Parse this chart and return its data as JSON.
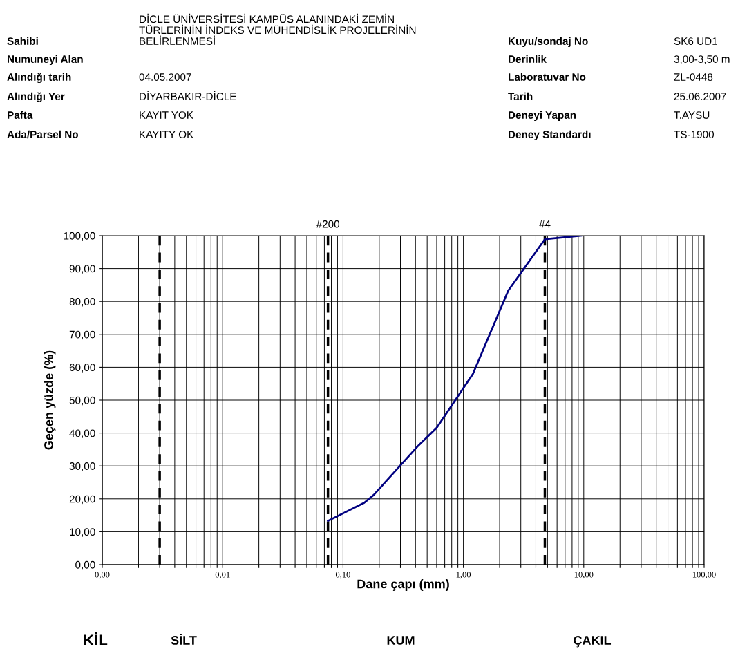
{
  "chart_data": {
    "type": "line",
    "xlabel": "Dane çapı (mm)",
    "ylabel": "Geçen yüzde (%)",
    "x": [
      0.075,
      0.15,
      0.18,
      0.42,
      0.6,
      1.2,
      2.36,
      4.75,
      9.5
    ],
    "series": [
      {
        "color": "#000080",
        "values": [
          13.3,
          18.8,
          21.2,
          36.1,
          41.6,
          58.0,
          83.3,
          98.9,
          100
        ]
      }
    ],
    "log": "x",
    "xlim": [
      0.001,
      100
    ],
    "ylim": [
      0,
      100
    ],
    "xticks": [
      {
        "value": 0.001,
        "label": "0,00"
      },
      {
        "value": 0.002,
        "label": null
      },
      {
        "value": 0.003,
        "label": null
      },
      {
        "value": 0.004,
        "label": null
      },
      {
        "value": 0.005,
        "label": null
      },
      {
        "value": 0.006,
        "label": null
      },
      {
        "value": 0.007,
        "label": null
      },
      {
        "value": 0.008,
        "label": null
      },
      {
        "value": 0.009,
        "label": null
      },
      {
        "value": 0.01,
        "label": "0,01"
      },
      {
        "value": 0.02,
        "label": null
      },
      {
        "value": 0.03,
        "label": null
      },
      {
        "value": 0.04,
        "label": null
      },
      {
        "value": 0.05,
        "label": null
      },
      {
        "value": 0.06,
        "label": null
      },
      {
        "value": 0.07,
        "label": null
      },
      {
        "value": 0.08,
        "label": null
      },
      {
        "value": 0.09,
        "label": null
      },
      {
        "value": 0.1,
        "label": "0,10"
      },
      {
        "value": 0.2,
        "label": null
      },
      {
        "value": 0.3,
        "label": null
      },
      {
        "value": 0.4,
        "label": null
      },
      {
        "value": 0.5,
        "label": null
      },
      {
        "value": 0.6,
        "label": null
      },
      {
        "value": 0.7,
        "label": null
      },
      {
        "value": 0.8,
        "label": null
      },
      {
        "value": 0.9,
        "label": null
      },
      {
        "value": 1,
        "label": "1,00"
      },
      {
        "value": 2,
        "label": null
      },
      {
        "value": 3,
        "label": null
      },
      {
        "value": 4,
        "label": null
      },
      {
        "value": 5,
        "label": null
      },
      {
        "value": 6,
        "label": null
      },
      {
        "value": 7,
        "label": null
      },
      {
        "value": 8,
        "label": null
      },
      {
        "value": 9,
        "label": null
      },
      {
        "value": 10,
        "label": "10,00"
      },
      {
        "value": 20,
        "label": null
      },
      {
        "value": 30,
        "label": null
      },
      {
        "value": 40,
        "label": null
      },
      {
        "value": 50,
        "label": null
      },
      {
        "value": 60,
        "label": null
      },
      {
        "value": 70,
        "label": null
      },
      {
        "value": 80,
        "label": null
      },
      {
        "value": 90,
        "label": null
      },
      {
        "value": 100,
        "label": "100,00"
      }
    ],
    "yticks": [
      {
        "value": 0,
        "label": "0,00"
      },
      {
        "value": 10,
        "label": "10,00"
      },
      {
        "value": 20,
        "label": "20,00"
      },
      {
        "value": 30,
        "label": "30,00"
      },
      {
        "value": 40,
        "label": "40,00"
      },
      {
        "value": 50,
        "label": "50,00"
      },
      {
        "value": 60,
        "label": "60,00"
      },
      {
        "value": 70,
        "label": "70,00"
      },
      {
        "value": 80,
        "label": "80,00"
      },
      {
        "value": 90,
        "label": "90,00"
      },
      {
        "value": 100,
        "label": "100,00"
      }
    ],
    "grid": true,
    "legend": false,
    "marker": "none",
    "line_style": "solid",
    "ref_lines": [
      {
        "axis": "x",
        "value": 0.003,
        "label": null,
        "color": "#000000",
        "line_style": "dashed"
      },
      {
        "axis": "x",
        "value": 0.075,
        "label": null,
        "color": "#000000",
        "line_style": "dashed"
      },
      {
        "axis": "x",
        "value": 4.75,
        "label": null,
        "color": "#000000",
        "line_style": "dashed"
      }
    ],
    "annotations": [
      "Sahibi",
      "Numuneyi Alan",
      "Alındığı tarih",
      "Alındığı Yer",
      "Pafta",
      "Ada/Parsel No",
      "DİCLE ÜNİVERSİTESİ KAMPÜS ALANINDAKİ ZEMİN\nTÜRLERİNİN İNDEKS VE MÜHENDİSLİK PROJELERİNİN\nBELİRLENMESİ",
      null,
      "04.05.2007",
      "DİYARBAKIR-DİCLE",
      "KAYIT YOK",
      "KAYITY OK",
      "Kuyu/sondaj No",
      "Derinlik",
      "Laboratuvar No",
      "Tarih",
      "Deneyi Yapan",
      "Deney Standardı",
      "SK6 UD1",
      "3,00-3,50 m",
      "ZL-0448",
      "25.06.2007",
      "T.AYSU",
      "TS-1900",
      "KİL",
      "SİLT",
      "KUM",
      "ÇAKIL",
      {
        "text": "#200",
        "x": 0.075,
        "y": 100
      },
      {
        "text": "#4",
        "x": 4.75,
        "y": 100
      }
    ]
  }
}
